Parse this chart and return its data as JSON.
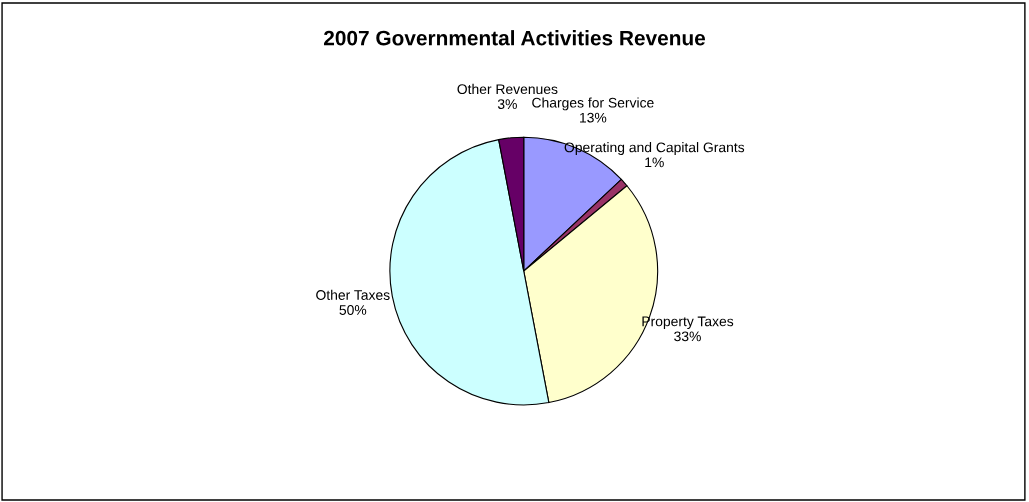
{
  "chart_data": {
    "type": "pie",
    "title": "2007 Governmental Activities Revenue",
    "categories": [
      "Charges for Service",
      "Operating and Capital Grants",
      "Property Taxes",
      "Other Taxes",
      "Other Revenues"
    ],
    "values": [
      13,
      1,
      33,
      50,
      3
    ],
    "value_labels": [
      "13%",
      "1%",
      "33%",
      "50%",
      "3%"
    ],
    "colors": [
      "#9999ff",
      "#993366",
      "#ffffcc",
      "#ccffff",
      "#660066"
    ]
  }
}
